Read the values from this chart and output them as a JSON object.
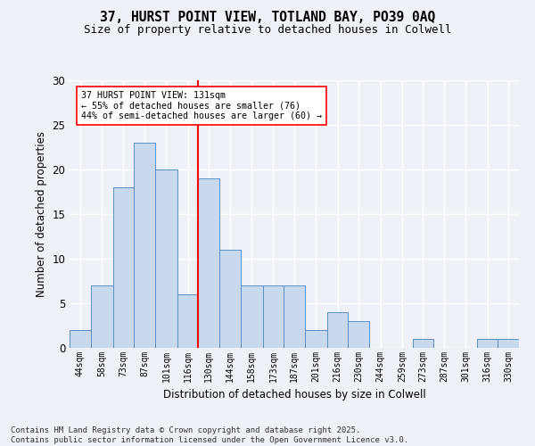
{
  "title1": "37, HURST POINT VIEW, TOTLAND BAY, PO39 0AQ",
  "title2": "Size of property relative to detached houses in Colwell",
  "xlabel": "Distribution of detached houses by size in Colwell",
  "ylabel": "Number of detached properties",
  "bin_labels": [
    "44sqm",
    "58sqm",
    "73sqm",
    "87sqm",
    "101sqm",
    "116sqm",
    "130sqm",
    "144sqm",
    "158sqm",
    "173sqm",
    "187sqm",
    "201sqm",
    "216sqm",
    "230sqm",
    "244sqm",
    "259sqm",
    "273sqm",
    "287sqm",
    "301sqm",
    "316sqm",
    "330sqm"
  ],
  "bin_edges": [
    44,
    58,
    73,
    87,
    101,
    116,
    130,
    144,
    158,
    173,
    187,
    201,
    216,
    230,
    244,
    259,
    273,
    287,
    301,
    316,
    330,
    344
  ],
  "counts": [
    2,
    7,
    18,
    23,
    20,
    6,
    19,
    11,
    7,
    7,
    7,
    2,
    4,
    3,
    0,
    0,
    1,
    0,
    0,
    1,
    1
  ],
  "bar_color": "#c9d9ed",
  "bar_edge_color": "#5b8ec4",
  "vline_x": 130,
  "vline_color": "red",
  "annotation_text": "37 HURST POINT VIEW: 131sqm\n← 55% of detached houses are smaller (76)\n44% of semi-detached houses are larger (60) →",
  "annotation_box_color": "white",
  "annotation_box_edge_color": "red",
  "ylim": [
    0,
    30
  ],
  "yticks": [
    0,
    5,
    10,
    15,
    20,
    25,
    30
  ],
  "bg_color": "#eef2f8",
  "grid_color": "white",
  "footer": "Contains HM Land Registry data © Crown copyright and database right 2025.\nContains public sector information licensed under the Open Government Licence v3.0."
}
